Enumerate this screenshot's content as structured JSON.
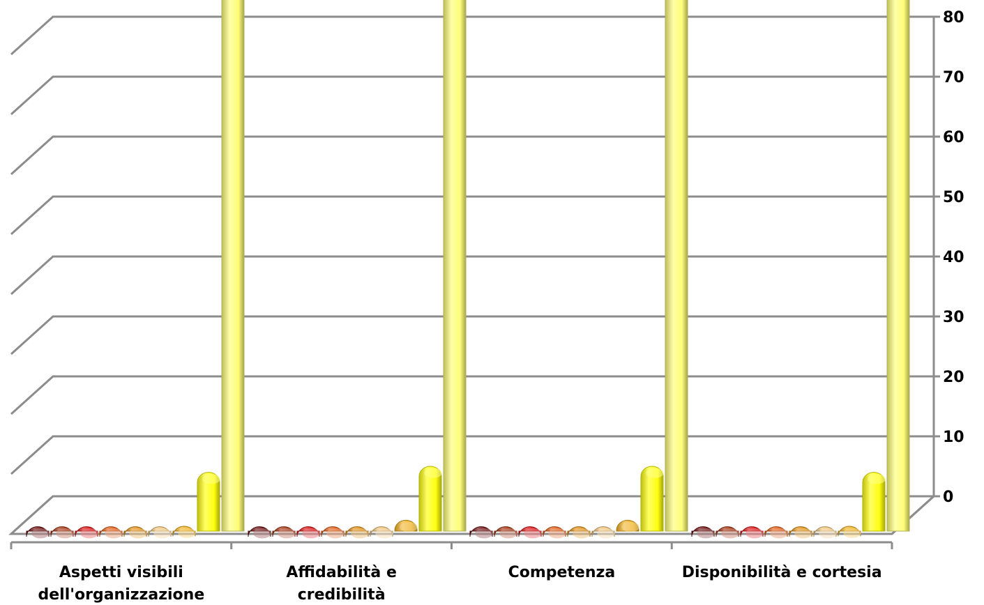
{
  "chart_data": {
    "type": "bar",
    "title": "",
    "xlabel": "",
    "ylabel": "",
    "ylim": [
      0,
      80
    ],
    "yticks": [
      0,
      10,
      20,
      30,
      40,
      50,
      60,
      70,
      80
    ],
    "grid": true,
    "legend": "none",
    "categories": [
      [
        "Aspetti visibili",
        "dell'organizzazione"
      ],
      [
        "Affidabilità e",
        "credibilità"
      ],
      [
        "Competenza"
      ],
      [
        "Disponibilità e cortesia"
      ]
    ],
    "series": [
      {
        "color": "#6b0a0a",
        "values": [
          0,
          0,
          0,
          0
        ]
      },
      {
        "color": "#a3300c",
        "values": [
          0,
          0,
          0,
          0
        ]
      },
      {
        "color": "#d80f0f",
        "values": [
          0,
          0,
          0,
          0
        ]
      },
      {
        "color": "#df5a10",
        "values": [
          0,
          0,
          0,
          0
        ]
      },
      {
        "color": "#e08e12",
        "values": [
          0,
          0,
          0,
          0
        ]
      },
      {
        "color": "#f0c47a",
        "values": [
          0,
          0,
          0,
          0
        ]
      },
      {
        "color": "#f0b020",
        "values": [
          1,
          2,
          2,
          1
        ]
      },
      {
        "color": "#ffff10",
        "values": [
          10,
          11,
          11,
          10
        ]
      },
      {
        "color": "#fdfd78",
        "values": [
          93,
          93,
          93,
          93
        ]
      }
    ]
  }
}
